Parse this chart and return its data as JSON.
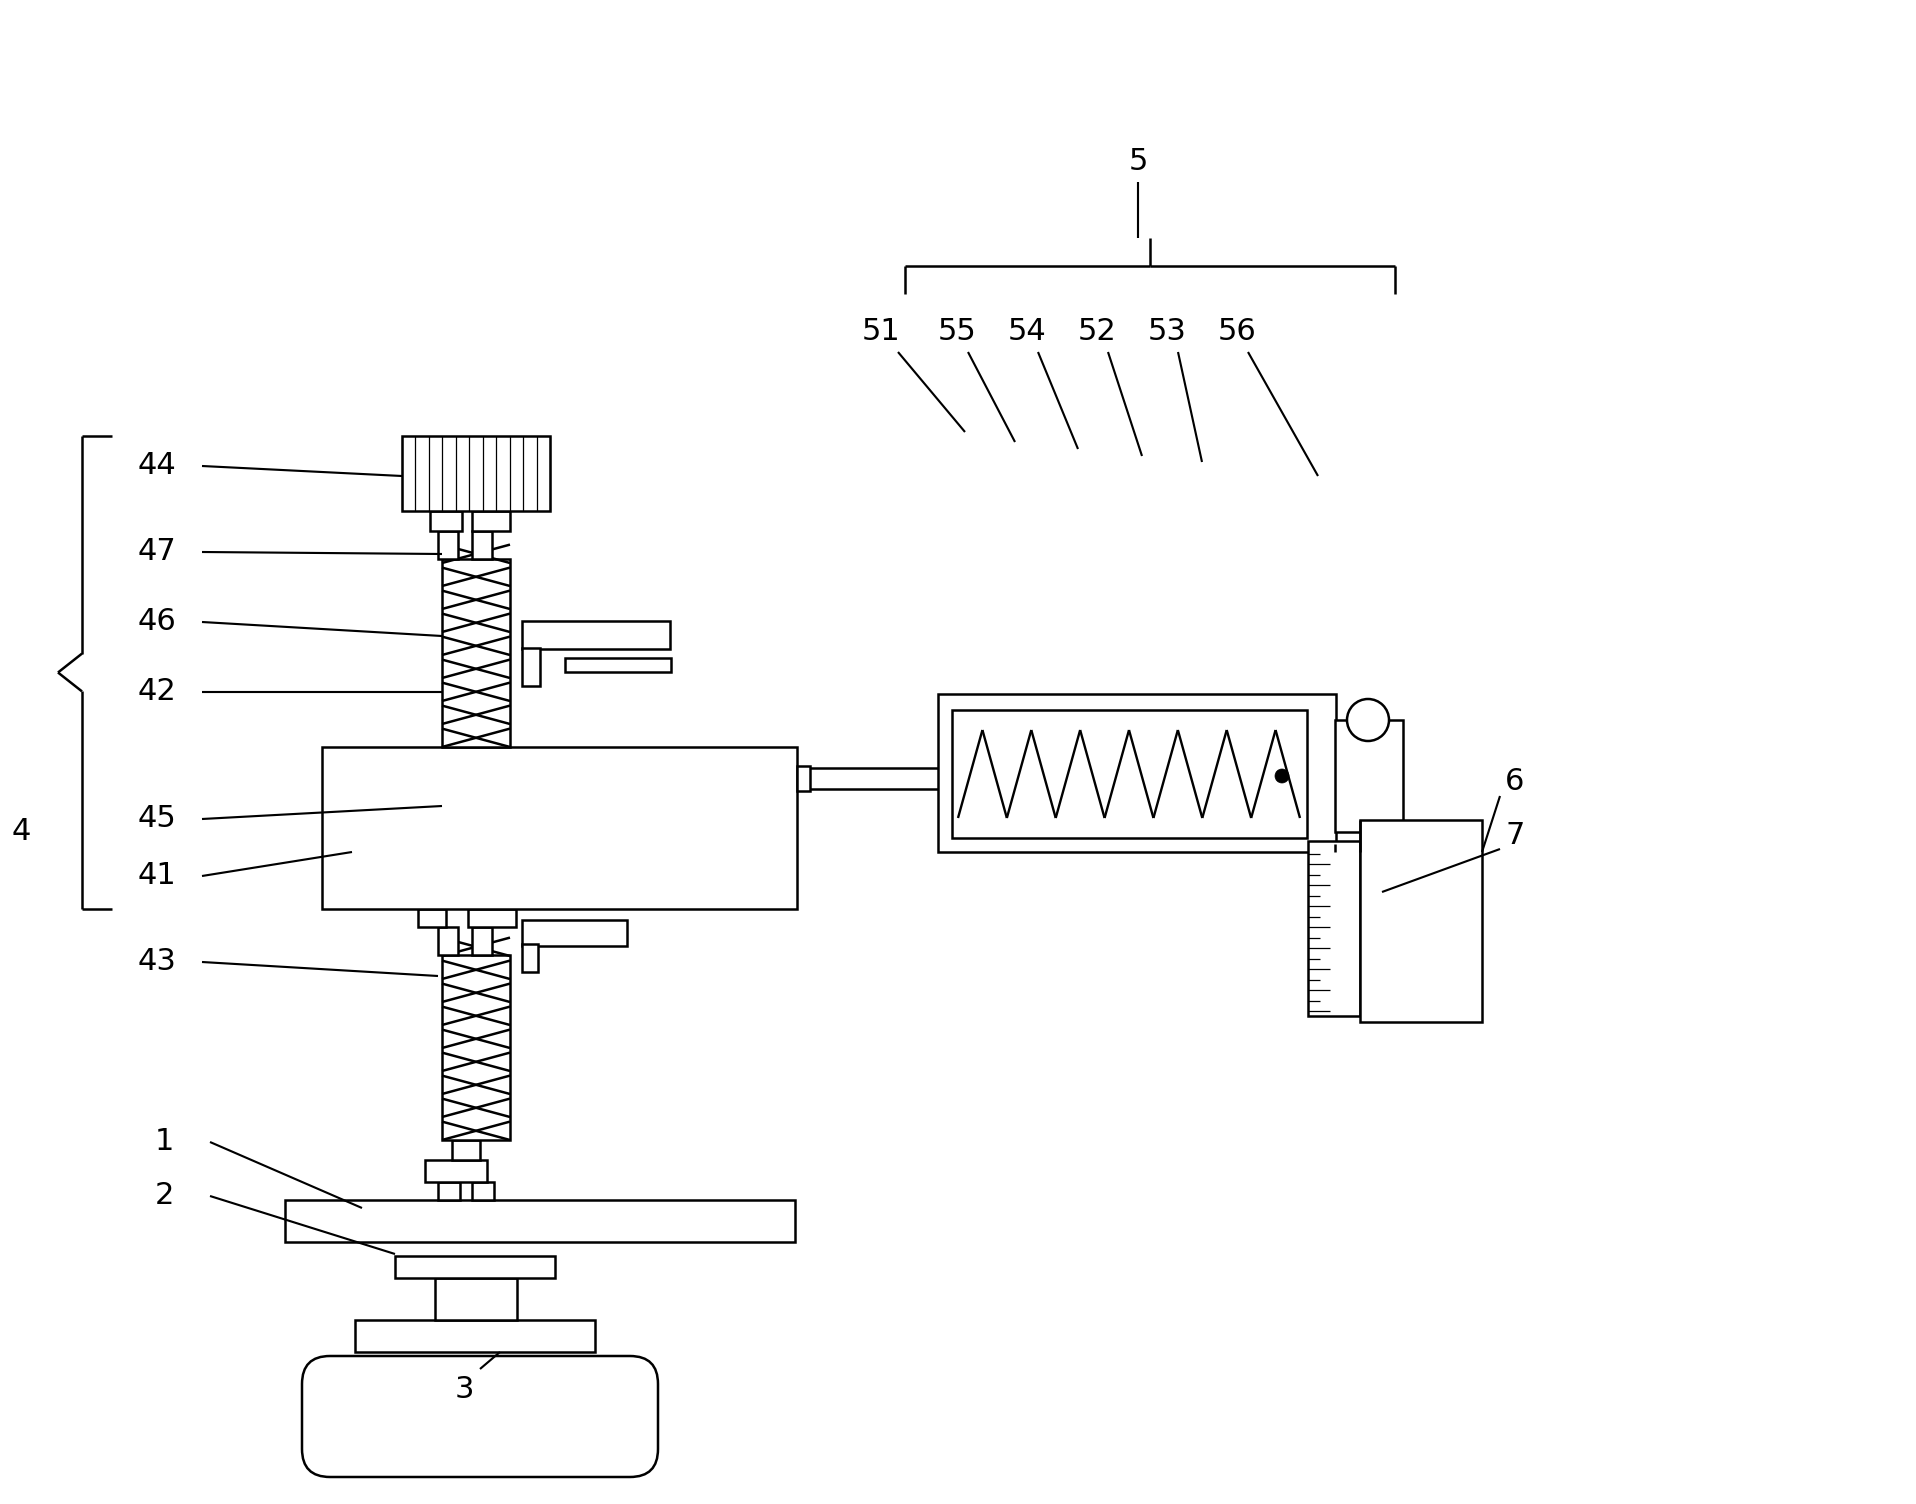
{
  "bg_color": "#ffffff",
  "line_color": "#000000",
  "line_width": 1.8,
  "fig_width": 19.16,
  "fig_height": 15.04
}
